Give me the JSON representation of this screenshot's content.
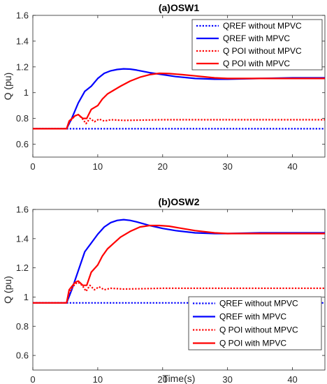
{
  "chart_data": [
    {
      "type": "line",
      "title": "(a)OSW1",
      "xlabel": "",
      "ylabel": "Q (pu)",
      "xlim": [
        0,
        45
      ],
      "ylim": [
        0.5,
        1.6
      ],
      "xticks": [
        0,
        10,
        20,
        30,
        40
      ],
      "yticks": [
        0.6,
        0.8,
        1,
        1.2,
        1.4,
        1.6
      ],
      "ytick_labels": [
        "0.6",
        "0.8",
        "1",
        "1.2",
        "1.4",
        "1.6"
      ],
      "grid": false,
      "legend_position": "top-right",
      "series": [
        {
          "name": "QREF without MPVC",
          "color": "#0000ff",
          "style": "dotted",
          "x": [
            0,
            45
          ],
          "y": [
            0.72,
            0.72
          ]
        },
        {
          "name": "QREF with MPVC",
          "color": "#0000ff",
          "style": "solid",
          "x": [
            0,
            5.2,
            6,
            7,
            8,
            9,
            10,
            11,
            12,
            13,
            14,
            15,
            16,
            18,
            20,
            22,
            25,
            28,
            30,
            35,
            40,
            45
          ],
          "y": [
            0.72,
            0.72,
            0.8,
            0.92,
            1.01,
            1.05,
            1.11,
            1.15,
            1.17,
            1.18,
            1.185,
            1.183,
            1.175,
            1.155,
            1.14,
            1.125,
            1.11,
            1.105,
            1.105,
            1.11,
            1.115,
            1.115
          ]
        },
        {
          "name": "Q POI without MPVC",
          "color": "#ff0000",
          "style": "dotted",
          "x": [
            0,
            5.2,
            5.6,
            6.5,
            7,
            7.6,
            8.2,
            8.8,
            9.5,
            10.2,
            11,
            12,
            14,
            20,
            30,
            45
          ],
          "y": [
            0.72,
            0.72,
            0.77,
            0.82,
            0.83,
            0.8,
            0.76,
            0.8,
            0.775,
            0.795,
            0.78,
            0.79,
            0.785,
            0.79,
            0.79,
            0.79
          ]
        },
        {
          "name": "Q POI with MPVC",
          "color": "#ff0000",
          "style": "solid",
          "x": [
            0,
            5.2,
            5.6,
            6.5,
            7,
            7.7,
            8.3,
            9,
            10,
            10.7,
            11.5,
            12.5,
            13.5,
            15,
            16.5,
            18,
            19.5,
            21,
            23,
            25,
            28,
            30,
            35,
            40,
            45
          ],
          "y": [
            0.72,
            0.72,
            0.78,
            0.82,
            0.83,
            0.8,
            0.8,
            0.87,
            0.9,
            0.95,
            0.99,
            1.02,
            1.05,
            1.09,
            1.12,
            1.14,
            1.15,
            1.148,
            1.14,
            1.13,
            1.115,
            1.11,
            1.11,
            1.11,
            1.11
          ]
        }
      ]
    },
    {
      "type": "line",
      "title": "(b)OSW2",
      "xlabel": "Time(s)",
      "ylabel": "Q (pu)",
      "xlim": [
        0,
        45
      ],
      "ylim": [
        0.5,
        1.6
      ],
      "xticks": [
        0,
        10,
        20,
        30,
        40
      ],
      "yticks": [
        0.6,
        0.8,
        1,
        1.2,
        1.4,
        1.6
      ],
      "ytick_labels": [
        "0.6",
        "0.8",
        "1",
        "1.2",
        "1.4",
        "1.6"
      ],
      "grid": false,
      "legend_position": "bottom-right",
      "series": [
        {
          "name": "QREF without MPVC",
          "color": "#0000ff",
          "style": "dotted",
          "x": [
            0,
            45
          ],
          "y": [
            0.96,
            0.96
          ]
        },
        {
          "name": "QREF with MPVC",
          "color": "#0000ff",
          "style": "solid",
          "x": [
            0,
            5.2,
            6,
            7,
            8,
            9,
            10,
            11,
            12,
            13,
            14,
            15,
            16,
            18,
            20,
            22,
            25,
            28,
            30,
            35,
            40,
            45
          ],
          "y": [
            0.96,
            0.96,
            1.05,
            1.18,
            1.31,
            1.37,
            1.43,
            1.48,
            1.51,
            1.525,
            1.53,
            1.525,
            1.515,
            1.49,
            1.47,
            1.455,
            1.44,
            1.435,
            1.435,
            1.44,
            1.44,
            1.44
          ]
        },
        {
          "name": "Q POI without MPVC",
          "color": "#ff0000",
          "style": "dotted",
          "x": [
            0,
            5.2,
            5.6,
            6.5,
            7,
            7.6,
            8.2,
            8.8,
            9.5,
            10.2,
            11,
            12,
            14,
            20,
            30,
            45
          ],
          "y": [
            0.96,
            0.96,
            1.03,
            1.09,
            1.1,
            1.08,
            1.04,
            1.08,
            1.05,
            1.07,
            1.05,
            1.06,
            1.055,
            1.06,
            1.06,
            1.06
          ]
        },
        {
          "name": "Q POI with MPVC",
          "color": "#ff0000",
          "style": "solid",
          "x": [
            0,
            5.2,
            5.6,
            6.5,
            7,
            7.7,
            8.3,
            9,
            10,
            10.7,
            11.5,
            12.5,
            13.5,
            15,
            16.5,
            18,
            19.5,
            21,
            23,
            25,
            28,
            30,
            35,
            40,
            45
          ],
          "y": [
            0.96,
            0.96,
            1.05,
            1.1,
            1.11,
            1.08,
            1.08,
            1.17,
            1.22,
            1.28,
            1.33,
            1.37,
            1.41,
            1.45,
            1.48,
            1.49,
            1.49,
            1.485,
            1.47,
            1.455,
            1.44,
            1.435,
            1.435,
            1.435,
            1.435
          ]
        }
      ]
    }
  ]
}
